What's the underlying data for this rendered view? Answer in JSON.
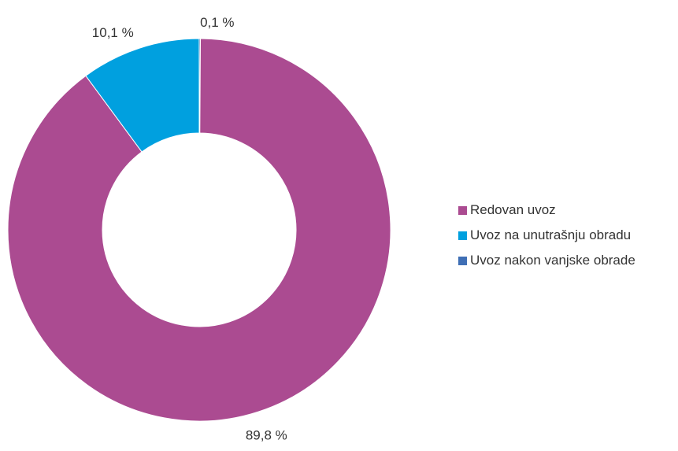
{
  "chart_data": {
    "type": "pie",
    "variant": "donut",
    "categories": [
      "Redovan uvoz",
      "Uvoz na unutrašnju obradu",
      "Uvoz nakon vanjske obrade"
    ],
    "values": [
      89.8,
      10.1,
      0.1
    ],
    "value_labels": [
      "89,8 %",
      "10,1 %",
      "0,1 %"
    ],
    "colors": [
      "#ab4b91",
      "#00a0df",
      "#3f6fb5"
    ],
    "legend": "right"
  }
}
